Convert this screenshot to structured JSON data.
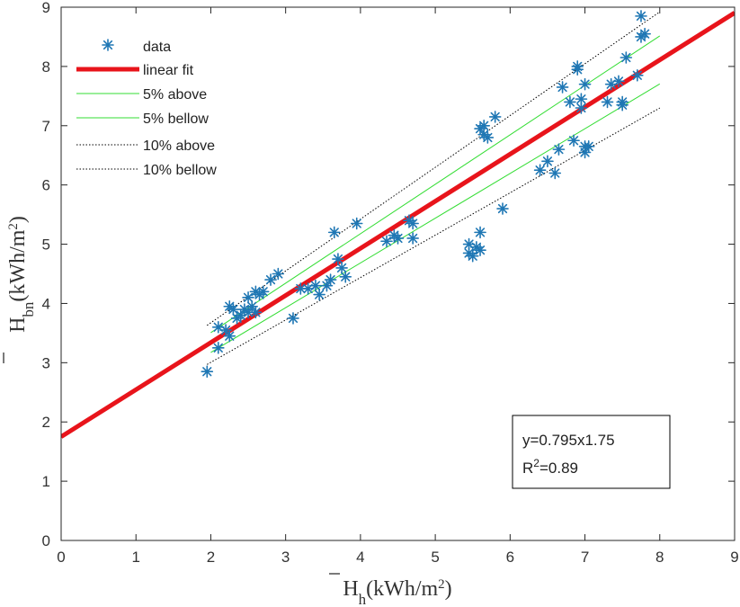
{
  "chart_data": {
    "type": "scatter",
    "title": "",
    "xlim": [
      0,
      9
    ],
    "ylim": [
      0,
      9
    ],
    "xticks": [
      "0",
      "1",
      "2",
      "3",
      "4",
      "5",
      "6",
      "7",
      "8",
      "9"
    ],
    "yticks": [
      "0",
      "1",
      "2",
      "3",
      "4",
      "5",
      "6",
      "7",
      "8",
      "9"
    ],
    "xlabel": {
      "main": "H",
      "sub": "h",
      "rest": "(kWh/m",
      "sup": "2",
      "close": ")"
    },
    "ylabel": {
      "main": "H",
      "sub": "bn",
      "rest": "(kWh/m",
      "sup": "2",
      "close": ")"
    },
    "grid": false,
    "legend_position": "top-left",
    "legend": [
      {
        "label": "data",
        "style": "marker",
        "color": "#1f77b4"
      },
      {
        "label": "linear fit",
        "style": "thick",
        "color": "#e8141b"
      },
      {
        "label": "5% above",
        "style": "thin",
        "color": "#33dd33"
      },
      {
        "label": "5% bellow",
        "style": "thin",
        "color": "#33dd33"
      },
      {
        "label": "10% above",
        "style": "dotted",
        "color": "#000000"
      },
      {
        "label": "10% bellow",
        "style": "dotted",
        "color": "#000000"
      }
    ],
    "annotation": {
      "line1": "y=0.795x1.75",
      "line2_base": "R",
      "line2_sup": "2",
      "line2_rest": "=0.89"
    },
    "fit": {
      "slope": 0.795,
      "intercept": 1.75,
      "x": [
        0,
        9
      ],
      "color": "#e8141b"
    },
    "bands": [
      {
        "name": "5% above",
        "factor": 1.05,
        "x": [
          2.0,
          8.0
        ],
        "color": "#33dd33",
        "style": "solid"
      },
      {
        "name": "5% bellow",
        "factor": 0.95,
        "x": [
          2.0,
          8.0
        ],
        "color": "#33dd33",
        "style": "solid"
      },
      {
        "name": "10% above",
        "factor": 1.1,
        "x": [
          1.95,
          8.0
        ],
        "color": "#000000",
        "style": "dotted"
      },
      {
        "name": "10% bellow",
        "factor": 0.9,
        "x": [
          1.95,
          8.0
        ],
        "color": "#000000",
        "style": "dotted"
      }
    ],
    "series": [
      {
        "name": "data",
        "color": "#1f77b4",
        "points": [
          [
            1.95,
            2.85
          ],
          [
            2.1,
            3.25
          ],
          [
            2.1,
            3.6
          ],
          [
            2.2,
            3.55
          ],
          [
            2.25,
            3.45
          ],
          [
            2.25,
            3.95
          ],
          [
            2.3,
            3.9
          ],
          [
            2.35,
            3.75
          ],
          [
            2.4,
            3.8
          ],
          [
            2.45,
            3.9
          ],
          [
            2.5,
            3.85
          ],
          [
            2.5,
            4.1
          ],
          [
            2.55,
            3.95
          ],
          [
            2.6,
            4.2
          ],
          [
            2.6,
            3.85
          ],
          [
            2.65,
            4.15
          ],
          [
            2.7,
            4.2
          ],
          [
            2.8,
            4.4
          ],
          [
            2.9,
            4.5
          ],
          [
            3.1,
            3.75
          ],
          [
            3.2,
            4.25
          ],
          [
            3.3,
            4.25
          ],
          [
            3.4,
            4.3
          ],
          [
            3.45,
            4.15
          ],
          [
            3.55,
            4.3
          ],
          [
            3.6,
            4.4
          ],
          [
            3.65,
            5.2
          ],
          [
            3.7,
            4.75
          ],
          [
            3.75,
            4.6
          ],
          [
            3.8,
            4.45
          ],
          [
            3.95,
            5.35
          ],
          [
            4.35,
            5.05
          ],
          [
            4.45,
            5.15
          ],
          [
            4.5,
            5.1
          ],
          [
            4.65,
            5.4
          ],
          [
            4.7,
            5.35
          ],
          [
            4.7,
            5.1
          ],
          [
            5.45,
            5.0
          ],
          [
            5.45,
            4.85
          ],
          [
            5.5,
            4.8
          ],
          [
            5.55,
            4.95
          ],
          [
            5.6,
            5.2
          ],
          [
            5.6,
            4.9
          ],
          [
            5.6,
            6.95
          ],
          [
            5.65,
            7.0
          ],
          [
            5.65,
            6.85
          ],
          [
            5.7,
            6.8
          ],
          [
            5.8,
            7.15
          ],
          [
            5.9,
            5.6
          ],
          [
            6.4,
            6.25
          ],
          [
            6.5,
            6.4
          ],
          [
            6.6,
            6.2
          ],
          [
            6.65,
            6.6
          ],
          [
            6.7,
            7.65
          ],
          [
            6.8,
            7.4
          ],
          [
            6.85,
            6.75
          ],
          [
            6.9,
            8.0
          ],
          [
            6.9,
            7.95
          ],
          [
            6.95,
            7.45
          ],
          [
            6.95,
            7.3
          ],
          [
            7.0,
            7.7
          ],
          [
            7.0,
            6.65
          ],
          [
            7.0,
            6.55
          ],
          [
            7.05,
            6.65
          ],
          [
            7.3,
            7.4
          ],
          [
            7.35,
            7.7
          ],
          [
            7.45,
            7.75
          ],
          [
            7.5,
            7.4
          ],
          [
            7.5,
            7.35
          ],
          [
            7.55,
            8.15
          ],
          [
            7.7,
            7.85
          ],
          [
            7.75,
            8.85
          ],
          [
            7.75,
            8.5
          ],
          [
            7.8,
            8.55
          ]
        ]
      }
    ]
  }
}
